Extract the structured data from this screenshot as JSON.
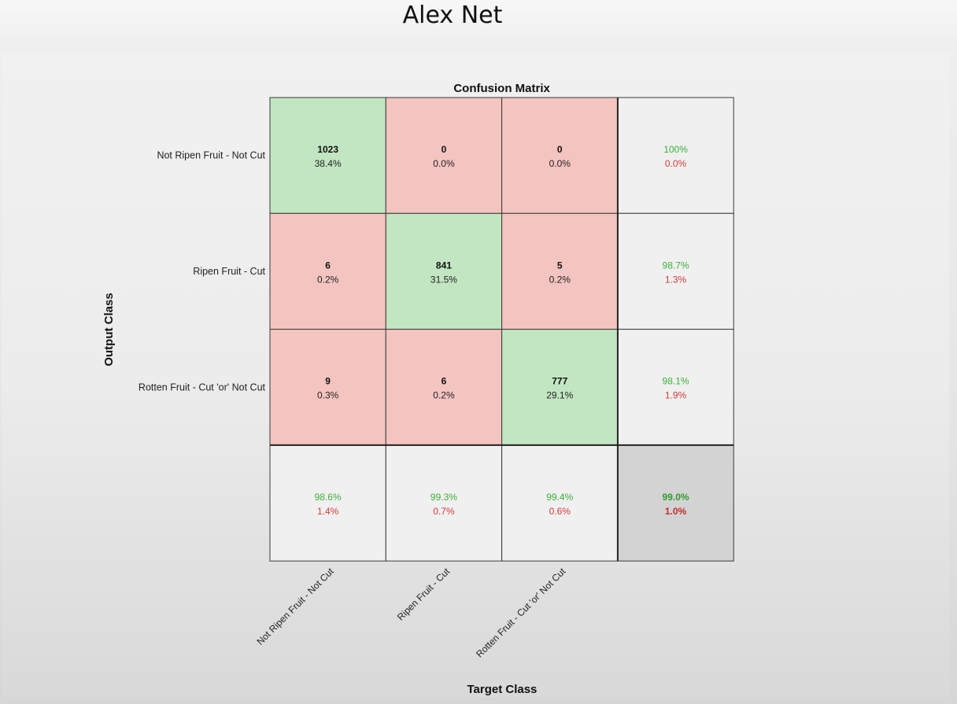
{
  "slide": {
    "title": "Alex Net"
  },
  "colors": {
    "correct_cell": "#c2e6c2",
    "error_cell": "#f4c4c0",
    "summary_cell": "#f0f0f0",
    "total_cell": "#d3d3d3",
    "green_text": "#3bb03b",
    "red_text": "#d63a3a"
  },
  "chart_data": {
    "type": "heatmap",
    "title": "Confusion Matrix",
    "xlabel": "Target Class",
    "ylabel": "Output Class",
    "classes": [
      "Not Ripen Fruit - Not Cut",
      "Ripen Fruit - Cut",
      "Rotten Fruit - Cut 'or' Not Cut"
    ],
    "cells": [
      [
        {
          "count": "1023",
          "percent": "38.4%"
        },
        {
          "count": "0",
          "percent": "0.0%"
        },
        {
          "count": "0",
          "percent": "0.0%"
        }
      ],
      [
        {
          "count": "6",
          "percent": "0.2%"
        },
        {
          "count": "841",
          "percent": "31.5%"
        },
        {
          "count": "5",
          "percent": "0.2%"
        }
      ],
      [
        {
          "count": "9",
          "percent": "0.3%"
        },
        {
          "count": "6",
          "percent": "0.2%"
        },
        {
          "count": "777",
          "percent": "29.1%"
        }
      ]
    ],
    "row_summary": [
      {
        "correct": "100%",
        "error": "0.0%"
      },
      {
        "correct": "98.7%",
        "error": "1.3%"
      },
      {
        "correct": "98.1%",
        "error": "1.9%"
      }
    ],
    "column_summary": [
      {
        "correct": "98.6%",
        "error": "1.4%"
      },
      {
        "correct": "99.3%",
        "error": "0.7%"
      },
      {
        "correct": "99.4%",
        "error": "0.6%"
      }
    ],
    "overall": {
      "correct": "99.0%",
      "error": "1.0%"
    }
  }
}
